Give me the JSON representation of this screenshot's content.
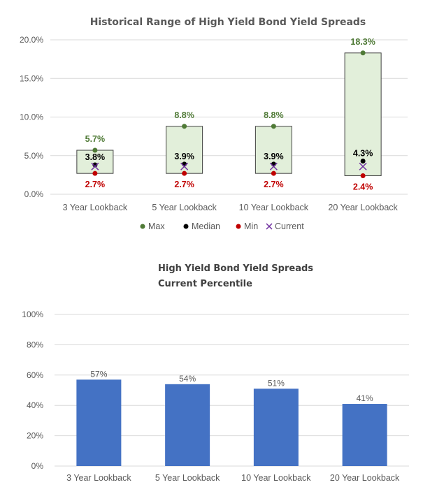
{
  "chart_data": [
    {
      "type": "range",
      "title": "Historical Range of High Yield Bond Yield Spreads",
      "categories": [
        "3 Year Lookback",
        "5 Year Lookback",
        "10 Year Lookback",
        "20 Year Lookback"
      ],
      "ylim": [
        0,
        20
      ],
      "yticks": [
        "0.0%",
        "5.0%",
        "10.0%",
        "15.0%",
        "20.0%"
      ],
      "series": [
        {
          "name": "Max",
          "values": [
            5.7,
            8.8,
            8.8,
            18.3
          ],
          "labels": [
            "5.7%",
            "8.8%",
            "8.8%",
            "18.3%"
          ]
        },
        {
          "name": "Median",
          "values": [
            3.8,
            3.9,
            3.9,
            4.3
          ],
          "labels": [
            "3.8%",
            "3.9%",
            "3.9%",
            "4.3%"
          ]
        },
        {
          "name": "Min",
          "values": [
            2.7,
            2.7,
            2.7,
            2.4
          ],
          "labels": [
            "2.7%",
            "2.7%",
            "2.7%",
            "2.4%"
          ]
        },
        {
          "name": "Current",
          "values": [
            3.6,
            3.6,
            3.6,
            3.6
          ]
        }
      ],
      "grid": true,
      "legend": "bottom",
      "colors": {
        "box_fill": "#e2efda",
        "box_stroke": "#404040",
        "max": "#4f7a36",
        "median": "#000000",
        "min": "#c00000",
        "current": "#7030a0"
      }
    },
    {
      "type": "bar",
      "title": "High Yield Bond Yield Spreads",
      "subtitle": "Current Percentile",
      "categories": [
        "3 Year Lookback",
        "5 Year Lookback",
        "10 Year Lookback",
        "20 Year Lookback"
      ],
      "values": [
        57,
        54,
        51,
        41
      ],
      "labels": [
        "57%",
        "54%",
        "51%",
        "41%"
      ],
      "ylim": [
        0,
        100
      ],
      "yticks": [
        "0%",
        "20%",
        "40%",
        "60%",
        "80%",
        "100%"
      ],
      "grid": true,
      "colors": {
        "bar": "#4472c4"
      }
    }
  ]
}
